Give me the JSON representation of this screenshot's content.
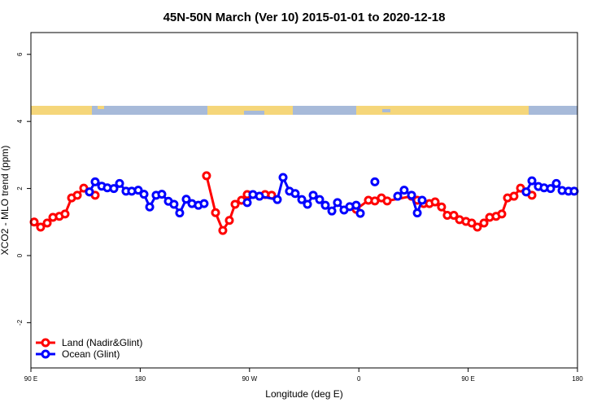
{
  "chart_data": {
    "type": "line",
    "title": "45N-50N March (Ver 10)   2015-01-01 to 2020-12-18",
    "xlabel": "Longitude (deg E)",
    "ylabel": "XCO2 - MLO trend (ppm)",
    "xlim": [
      90,
      540
    ],
    "xticks": [
      {
        "value": 90,
        "label": "90 E"
      },
      180,
      {
        "value": 270,
        "label": "90 W"
      },
      {
        "value": 360,
        "label": "0"
      },
      {
        "value": 450,
        "label": "90 E"
      },
      {
        "value": 540,
        "label": "180"
      }
    ],
    "ylim": [
      -3.35,
      6.65
    ],
    "yticks": [
      -2,
      0,
      2,
      4,
      6
    ],
    "legend": "bottom-left",
    "series": [
      {
        "name": "Land (Nadir&Glint)",
        "color": "#ff0000",
        "x": [
          92.7,
          98.0,
          103.4,
          108.1,
          113.4,
          118.1,
          123.5,
          128.2,
          133.5,
          138.2,
          142.9,
          190,
          234.6,
          242.0,
          248.0,
          253.4,
          258.1,
          263.4,
          268.1,
          282.8,
          288.2,
          320,
          357.8,
          367.9,
          373.2,
          378.6,
          383.3,
          403.4,
          408.1,
          413.4,
          418.1,
          422.8,
          428.1,
          432.8,
          438.2,
          442.9,
          448.2,
          452.9,
          457.6,
          463.0,
          467.7,
          473.0,
          477.7,
          482.4,
          487.7,
          493.1,
          497.8,
          502.5
        ],
        "values": [
          1.0,
          0.85,
          0.97,
          1.14,
          1.17,
          1.24,
          1.72,
          1.8,
          2.01,
          1.9,
          1.8,
          null,
          2.38,
          1.28,
          0.75,
          1.05,
          1.53,
          1.65,
          1.82,
          1.82,
          1.8,
          null,
          1.38,
          1.65,
          1.63,
          1.72,
          1.63,
          1.77,
          1.65,
          1.55,
          1.55,
          1.6,
          1.45,
          1.2,
          1.2,
          1.07,
          1.02,
          0.97,
          0.85,
          0.97,
          1.14,
          1.17,
          1.24,
          1.72,
          1.77,
          2.01,
          1.9,
          1.8
        ]
      },
      {
        "name": "Ocean (Glint)",
        "color": "#0000ff",
        "x": [
          138.2,
          142.9,
          148.3,
          152.9,
          158.3,
          163.0,
          168.3,
          173.0,
          178.4,
          183.1,
          187.8,
          193.1,
          197.8,
          203.2,
          207.8,
          212.5,
          217.9,
          222.6,
          227.9,
          232.6,
          250,
          268.1,
          272.8,
          278.2,
          292.9,
          297.6,
          302.9,
          307.6,
          313.0,
          317.7,
          322.4,
          327.7,
          332.4,
          337.8,
          342.4,
          347.8,
          352.5,
          357.8,
          361.2,
          368,
          373.2,
          380,
          392.0,
          397.3,
          403.4,
          408.1,
          412.1,
          450,
          497.8,
          502.5,
          507.8,
          512.5,
          517.9,
          522.6,
          527.3,
          532.6,
          537.3
        ],
        "values": [
          1.9,
          2.2,
          2.07,
          2.02,
          2.0,
          2.15,
          1.92,
          1.92,
          1.95,
          1.83,
          1.45,
          1.8,
          1.83,
          1.62,
          1.53,
          1.27,
          1.68,
          1.55,
          1.5,
          1.55,
          null,
          1.58,
          1.82,
          1.77,
          1.67,
          2.33,
          1.92,
          1.85,
          1.67,
          1.53,
          1.8,
          1.67,
          1.5,
          1.33,
          1.58,
          1.36,
          1.46,
          1.5,
          1.26,
          null,
          2.2,
          null,
          1.77,
          1.95,
          1.8,
          1.27,
          1.65,
          null,
          1.9,
          2.23,
          2.06,
          2.02,
          2.0,
          2.15,
          1.94,
          1.92,
          1.92
        ]
      }
    ]
  }
}
